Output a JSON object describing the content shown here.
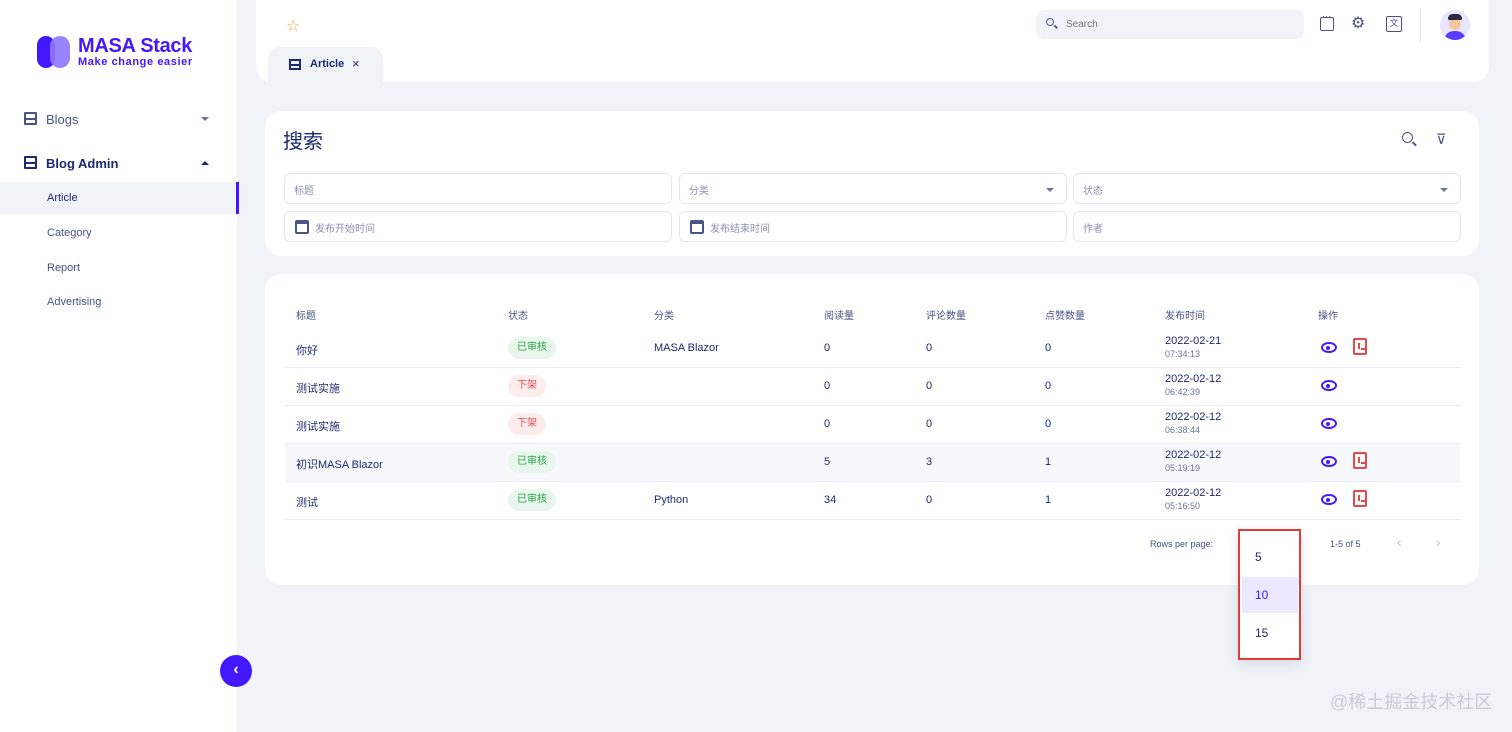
{
  "brand": {
    "name": "MASA Stack",
    "tagline": "Make change easier",
    "accent": "#4318ff"
  },
  "sidebar": {
    "groups": [
      {
        "label": "Blogs",
        "icon": "layout-icon",
        "expanded": false
      },
      {
        "label": "Blog Admin",
        "icon": "layout-icon",
        "expanded": true
      }
    ],
    "items": [
      "Article",
      "Category",
      "Report",
      "Advertising"
    ],
    "active_item": "Article",
    "collapse_icon": "chevron-left-icon",
    "collapse_label": "‹"
  },
  "header": {
    "search_placeholder": "Search",
    "icons": [
      "star-icon",
      "message-icon",
      "gear-icon",
      "translate-icon",
      "avatar"
    ],
    "star_glyph": "☆",
    "gear_glyph": "⚙",
    "lang_glyph": "文",
    "tab": {
      "label": "Article",
      "close": "×"
    }
  },
  "filters": {
    "title": "搜索",
    "title_placeholder": "标题",
    "category_placeholder": "分类",
    "status_placeholder": "状态",
    "start_placeholder": "发布开始时间",
    "end_placeholder": "发布结束时间",
    "author_placeholder": "作者",
    "filter_clear_glyph": "⊽"
  },
  "table": {
    "headers": [
      "标题",
      "状态",
      "分类",
      "阅读量",
      "评论数量",
      "点赞数量",
      "发布时间",
      "操作"
    ],
    "rows": [
      {
        "title": "你好",
        "status": "已审核",
        "category": "MASA Blazor",
        "reads": "0",
        "comments": "0",
        "likes": "0",
        "date": "2022-02-21",
        "time": "07:34:13",
        "status_type": "ok",
        "actions": [
          "view",
          "offline"
        ]
      },
      {
        "title": "测试实施",
        "status": "下架",
        "category": "",
        "reads": "0",
        "comments": "0",
        "likes": "0",
        "date": "2022-02-12",
        "time": "06:42:39",
        "status_type": "off",
        "actions": [
          "view"
        ]
      },
      {
        "title": "测试实施",
        "status": "下架",
        "category": "",
        "reads": "0",
        "comments": "0",
        "likes": "0",
        "date": "2022-02-12",
        "time": "06:38:44",
        "status_type": "off",
        "actions": [
          "view"
        ]
      },
      {
        "title": "初识MASA Blazor",
        "status": "已审核",
        "category": "",
        "reads": "5",
        "comments": "3",
        "likes": "1",
        "date": "2022-02-12",
        "time": "05:19:19",
        "status_type": "ok",
        "actions": [
          "view",
          "offline"
        ]
      },
      {
        "title": "测试",
        "status": "已审核",
        "category": "Python",
        "reads": "34",
        "comments": "0",
        "likes": "1",
        "date": "2022-02-12",
        "time": "05:16:50",
        "status_type": "ok",
        "actions": [
          "view",
          "offline"
        ]
      }
    ]
  },
  "pagination": {
    "rows_per_page_label": "Rows per page:",
    "range": "1-5 of 5",
    "prev": "‹",
    "next": "›",
    "options": [
      "5",
      "10",
      "15"
    ],
    "selected": "10"
  },
  "watermark": "@稀土掘金技术社区"
}
